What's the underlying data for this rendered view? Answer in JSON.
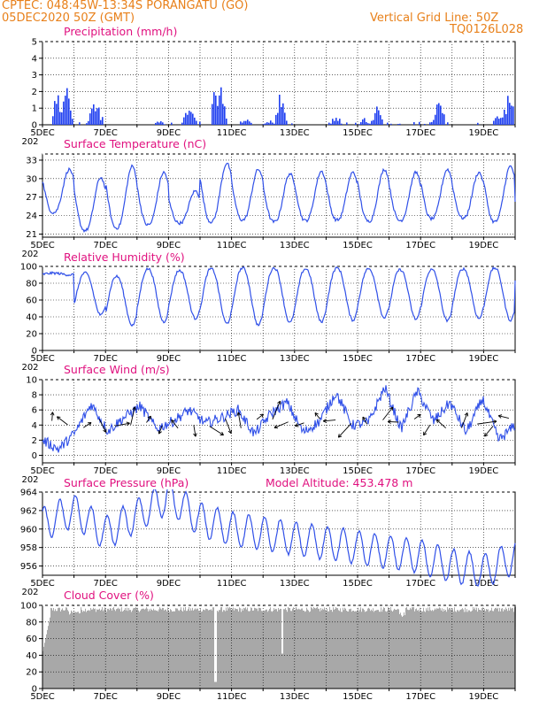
{
  "header": {
    "line1": "CPTEC:  048:45W-13:34S  PORANGATU (GO)",
    "line2": "05DEC2020 50Z (GMT)",
    "right1": "Vertical Grid Line: 50Z",
    "right2": "TQ0126L028"
  },
  "x_ticks": [
    "5DEC",
    "7DEC",
    "9DEC",
    "11DEC",
    "13DEC",
    "15DEC",
    "17DEC",
    "19DEC"
  ],
  "x_cut_label": "202",
  "colors": {
    "series": "#3050e8",
    "bars": "#2040f0",
    "cloud": "#a8a8a8",
    "title": "#e0117f",
    "header": "#e8801a"
  },
  "panels": {
    "precip": {
      "title": "Precipitation (mm/h)"
    },
    "temp": {
      "title": "Surface Temperature (nC)"
    },
    "rh": {
      "title": "Relative Humidity (%)"
    },
    "wind": {
      "title": "Surface Wind (m/s)"
    },
    "pres": {
      "title": "Surface Pressure (hPa)",
      "altitude": "Model Altitude: 453.478 m"
    },
    "cloud": {
      "title": "Cloud Cover (%)"
    }
  },
  "chart_data": [
    {
      "type": "bar",
      "title": "Precipitation (mm/h)",
      "ylim": [
        0,
        5
      ],
      "yticks": [
        0,
        1,
        2,
        3,
        4,
        5
      ],
      "x_range_days": [
        5,
        20
      ],
      "bursts": [
        [
          5.45,
          2.5
        ],
        [
          5.75,
          3.6
        ],
        [
          6.6,
          1.4
        ],
        [
          6.75,
          1.2
        ],
        [
          8.7,
          0.3
        ],
        [
          9.55,
          0.9
        ],
        [
          9.7,
          1.4
        ],
        [
          10.5,
          3.3
        ],
        [
          10.65,
          2.8
        ],
        [
          11.45,
          0.4
        ],
        [
          12.2,
          0.4
        ],
        [
          12.55,
          2.6
        ],
        [
          14.3,
          0.8
        ],
        [
          15.2,
          0.5
        ],
        [
          15.6,
          1.4
        ],
        [
          17.4,
          0.5
        ],
        [
          17.6,
          2.3
        ],
        [
          19.45,
          0.8
        ],
        [
          19.75,
          2.4
        ],
        [
          19.9,
          2.6
        ]
      ]
    },
    {
      "type": "line",
      "title": "Surface Temperature (nC)",
      "ylim": [
        21,
        33
      ],
      "yticks": [
        21,
        24,
        27,
        30,
        33
      ],
      "daily_min": [
        24.5,
        21.6,
        22.0,
        22.5,
        22.8,
        23.0,
        23.3,
        23.0,
        23.2,
        23.3,
        23.1,
        23.2,
        23.5,
        23.6,
        23.0,
        25.0
      ],
      "daily_max": [
        31.5,
        30.2,
        32.0,
        31.0,
        28.0,
        32.5,
        31.5,
        30.8,
        31.2,
        31.0,
        31.5,
        31.0,
        31.5,
        31.0,
        32.0,
        26.5
      ]
    },
    {
      "type": "line",
      "title": "Relative Humidity (%)",
      "ylim": [
        0,
        100
      ],
      "yticks": [
        0,
        20,
        40,
        60,
        80,
        100
      ],
      "daily_min": [
        90,
        42,
        30,
        34,
        38,
        32,
        30,
        33,
        34,
        36,
        39,
        37,
        35,
        38,
        36,
        80
      ],
      "daily_max": [
        92,
        92,
        88,
        97,
        95,
        97,
        98,
        98,
        97,
        98,
        97,
        96,
        96,
        97,
        98,
        90
      ]
    },
    {
      "type": "line",
      "title": "Surface Wind (m/s)",
      "ylim": [
        0,
        10
      ],
      "yticks": [
        0,
        2,
        4,
        6,
        8,
        10
      ],
      "speed_sample": [
        2.0,
        0.8,
        3.0,
        6.8,
        3.2,
        5.0,
        6.5,
        3.5,
        4.5,
        6.0,
        4.2,
        5.0,
        6.0,
        2.8,
        5.5,
        7.0,
        3.0,
        4.5,
        8.3,
        4.0,
        4.3,
        9.0,
        3.5,
        8.5,
        4.5,
        7.0,
        3.0,
        7.5,
        2.0,
        4.0
      ]
    },
    {
      "type": "line",
      "title": "Surface Pressure (hPa)",
      "ylim": [
        955,
        964
      ],
      "yticks": [
        956,
        958,
        960,
        962,
        964
      ],
      "series_trend": [
        960.5,
        962.0,
        959.5,
        961.5,
        963.5,
        961.0,
        960.0,
        959.5,
        959.0,
        958.5,
        958.0,
        957.5,
        957.0,
        956.0,
        955.5,
        957.0
      ]
    },
    {
      "type": "area",
      "title": "Cloud Cover (%)",
      "ylim": [
        0,
        100
      ],
      "yticks": [
        0,
        20,
        40,
        60,
        80,
        100
      ],
      "typical_value": 95
    }
  ]
}
